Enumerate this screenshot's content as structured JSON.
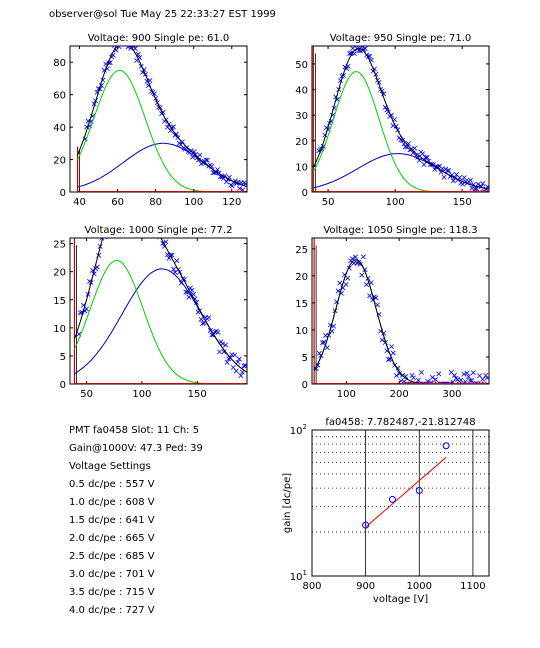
{
  "header": "observer@sol  Tue May 25 22:33:27 EST 1999",
  "info": {
    "line1": "PMT fa0458 Slot: 11 Ch: 5",
    "line2": "Gain@1000V: 47.3 Ped: 39",
    "heading": "Voltage Settings",
    "settings": [
      "0.5 dc/pe : 557 V",
      "1.0 dc/pe : 608 V",
      "1.5 dc/pe : 641 V",
      "2.0 dc/pe : 665 V",
      "2.5 dc/pe : 685 V",
      "3.0 dc/pe : 701 V",
      "3.5 dc/pe : 715 V",
      "4.0 dc/pe : 727 V"
    ]
  },
  "colors": {
    "data": "#0000ff",
    "total_fit": "#000000",
    "single_pe_fit": "#00d000",
    "double_pe_fit": "#0000c0",
    "pedestal": "#d00000",
    "gain_fit": "#ff0000"
  },
  "chart_data": [
    {
      "type": "scatter",
      "title": "Voltage: 900 Single pe: 61.0",
      "xlim": [
        35,
        128
      ],
      "ylim": [
        0,
        90
      ],
      "xticks": [
        40,
        60,
        80,
        100,
        120
      ],
      "yticks": [
        0,
        20,
        40,
        60,
        80
      ],
      "pedestal_x": 39,
      "pedestal_height": 28,
      "single_pe": {
        "mean": 61.0,
        "sigma": 13.5,
        "amp": 75
      },
      "double_pe": {
        "mean": 84,
        "sigma": 21,
        "amp": 30
      },
      "scatter_noise": 3.2
    },
    {
      "type": "scatter",
      "title": "Voltage: 950 Single pe: 71.0",
      "xlim": [
        38,
        170
      ],
      "ylim": [
        0,
        57
      ],
      "xticks": [
        50,
        100,
        150
      ],
      "yticks": [
        0,
        10,
        20,
        30,
        40,
        50
      ],
      "pedestal_x": 39,
      "pedestal_height": 57,
      "single_pe": {
        "mean": 71.0,
        "sigma": 17,
        "amp": 47
      },
      "double_pe": {
        "mean": 102,
        "sigma": 30,
        "amp": 15
      },
      "scatter_noise": 2.1
    },
    {
      "type": "scatter",
      "title": "Voltage: 1000 Single pe: 77.2",
      "xlim": [
        35,
        195
      ],
      "ylim": [
        0,
        26
      ],
      "xticks": [
        50,
        100,
        150
      ],
      "yticks": [
        0,
        5,
        10,
        15,
        20,
        25
      ],
      "pedestal_x": 39,
      "pedestal_height": 26,
      "single_pe": {
        "mean": 77.2,
        "sigma": 24,
        "amp": 22
      },
      "double_pe": {
        "mean": 118,
        "sigma": 36,
        "amp": 20.5
      },
      "scatter_noise": 1.6
    },
    {
      "type": "scatter",
      "title": "Voltage: 1050 Single pe: 118.3",
      "xlim": [
        35,
        370
      ],
      "ylim": [
        0,
        27
      ],
      "xticks": [
        100,
        200,
        300
      ],
      "yticks": [
        0,
        5,
        10,
        15,
        20,
        25
      ],
      "pedestal_x": 39,
      "pedestal_height": 27,
      "single_pe": {
        "mean": 118.3,
        "sigma": 38,
        "amp": 23
      },
      "double_pe": {
        "mean": 210,
        "sigma": 50,
        "amp": 0
      },
      "scatter_noise": 2.2
    },
    {
      "type": "line",
      "title": "fa0458: 7.782487,-21.812748",
      "xlabel": "voltage [V]",
      "ylabel": "gain [dc/pe]",
      "xlim": [
        800,
        1130
      ],
      "ylim": [
        10,
        100
      ],
      "yscale": "log",
      "grid": true,
      "xticks": [
        800,
        900,
        1000,
        1100
      ],
      "yticks_labeled": [
        {
          "v": 10,
          "base": "10",
          "exp": "1"
        },
        {
          "v": 100,
          "base": "10",
          "exp": "2"
        }
      ],
      "yticks_minor": [
        20,
        30,
        40,
        50,
        60,
        70,
        80,
        90
      ],
      "points": [
        {
          "x": 900,
          "y": 22.3
        },
        {
          "x": 950,
          "y": 33.5
        },
        {
          "x": 1000,
          "y": 38.5
        },
        {
          "x": 1050,
          "y": 78
        }
      ],
      "fit": {
        "x": [
          900,
          1050
        ],
        "y": [
          21.6,
          65
        ]
      }
    }
  ]
}
